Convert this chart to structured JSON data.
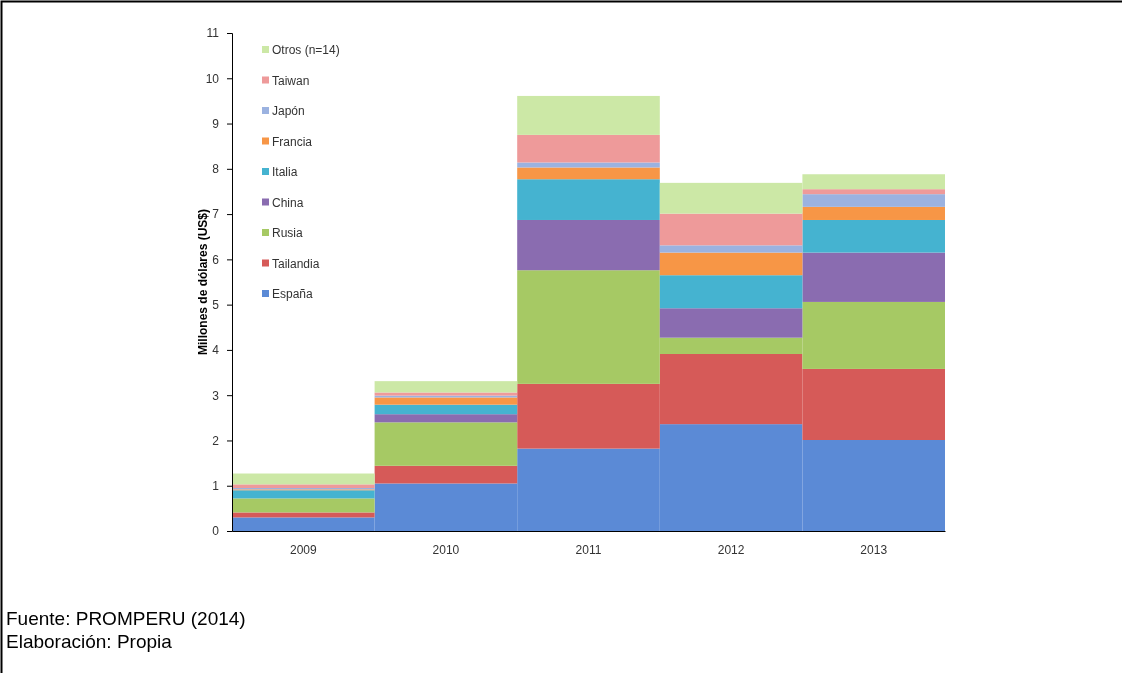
{
  "chart_data": {
    "type": "bar",
    "stacked": true,
    "ylabel": "Millones de dólares (US$)",
    "categories": [
      "2009",
      "2010",
      "2011",
      "2012",
      "2013"
    ],
    "series": [
      {
        "name": "España",
        "color": "#5b8ad6",
        "values": [
          0.3,
          1.05,
          1.82,
          2.36,
          2.01
        ]
      },
      {
        "name": "Tailandia",
        "color": "#d65a58",
        "values": [
          0.11,
          0.39,
          1.43,
          1.55,
          1.57
        ]
      },
      {
        "name": "Rusia",
        "color": "#a6c964",
        "values": [
          0.31,
          0.96,
          2.51,
          0.36,
          1.48
        ]
      },
      {
        "name": "China",
        "color": "#8a6cb0",
        "values": [
          null,
          0.18,
          1.11,
          0.65,
          1.09
        ]
      },
      {
        "name": "Italia",
        "color": "#45b3d0",
        "values": [
          0.18,
          0.21,
          0.9,
          0.73,
          0.72
        ]
      },
      {
        "name": "Francia",
        "color": "#f79646",
        "values": [
          0.02,
          0.16,
          0.26,
          0.5,
          0.29
        ]
      },
      {
        "name": "Japón",
        "color": "#9bb2e0",
        "values": [
          0.03,
          0.04,
          0.11,
          0.16,
          0.28
        ]
      },
      {
        "name": "Taiwan",
        "color": "#ee9a9a",
        "values": [
          0.08,
          0.07,
          0.61,
          0.7,
          0.11
        ]
      },
      {
        "name": "Otros (n=14)",
        "color": "#cce8a6",
        "values": [
          0.24,
          0.25,
          0.86,
          0.68,
          0.33
        ]
      }
    ],
    "ylim": [
      0,
      11
    ],
    "yticks": [
      0,
      1,
      2,
      3,
      4,
      5,
      6,
      7,
      8,
      9,
      10,
      11
    ],
    "grid": false,
    "legend": "top left",
    "annotations": [
      "Fuente: PROMPERU (2014)",
      "Elaboración: Propia"
    ]
  }
}
